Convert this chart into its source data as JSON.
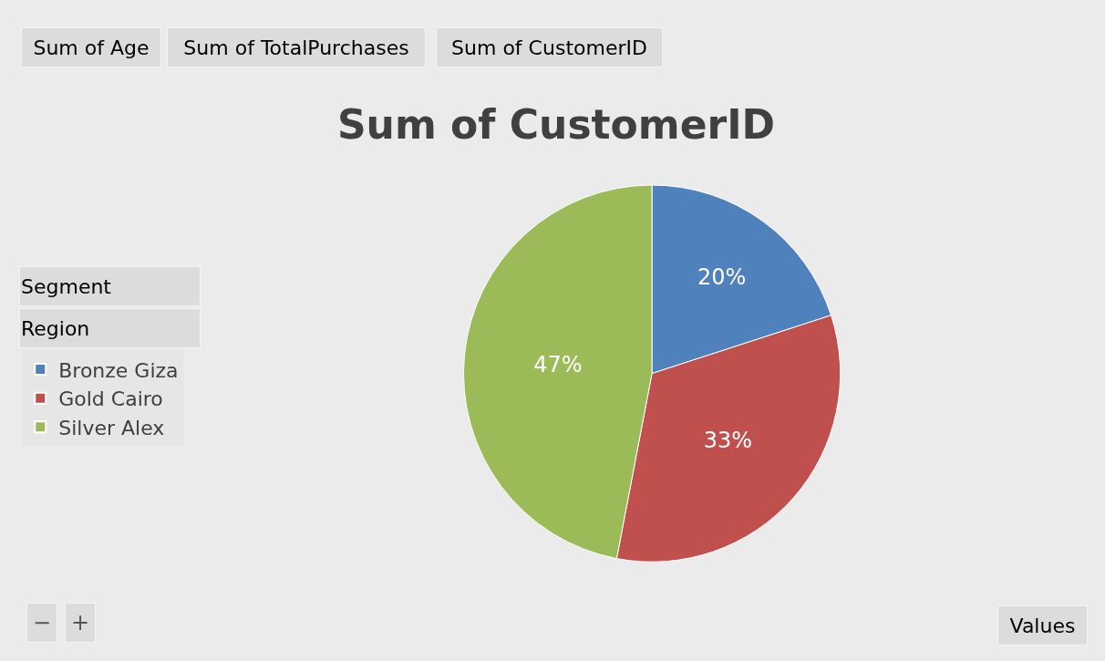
{
  "chart_data": {
    "type": "pie",
    "title": "Sum of CustomerID",
    "categories": [
      "Bronze Giza",
      "Gold Cairo",
      "Silver Alex"
    ],
    "values": [
      20,
      33,
      47
    ],
    "value_labels": [
      "20%",
      "33%",
      "47%"
    ],
    "colors": [
      "#4f81bd",
      "#c0504d",
      "#9bbb59"
    ],
    "legend": "left",
    "annotations": [
      "Sum of Age",
      "Sum of TotalPurchases",
      "Sum of CustomerID",
      "Segment",
      "Region",
      "Values",
      "−",
      "+"
    ]
  }
}
